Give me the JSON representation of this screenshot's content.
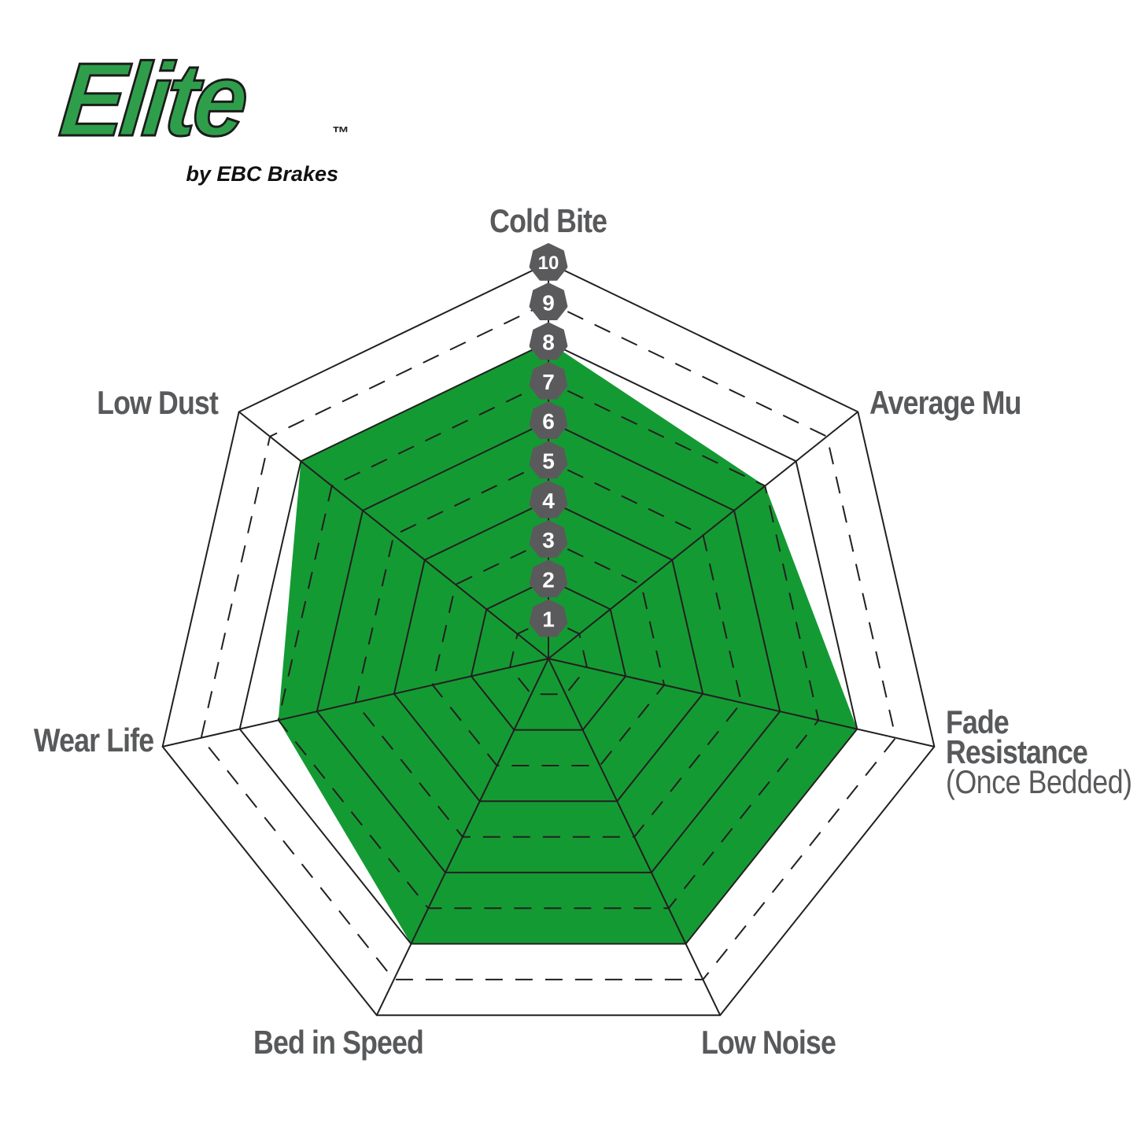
{
  "logo": {
    "brand": "Elite",
    "trademark": "™",
    "tagline": "by EBC Brakes",
    "brand_color": "#2F9E4B",
    "tagline_color": "#111111"
  },
  "axis_labels": {
    "cold_bite": "Cold Bite",
    "average_mu": "Average Mu",
    "fade_line1": "Fade",
    "fade_line2": "Resistance",
    "fade_line3": "(Once Bedded)",
    "low_noise": "Low Noise",
    "bed_in_speed": "Bed in Speed",
    "wear_life": "Wear Life",
    "low_dust": "Low Dust"
  },
  "chart_data": {
    "type": "radar",
    "axes_count": 7,
    "categories": [
      "Cold Bite",
      "Average Mu",
      "Fade Resistance (Once Bedded)",
      "Low Noise",
      "Bed in Speed",
      "Wear Life",
      "Low Dust"
    ],
    "series": [
      {
        "values": [
          8,
          7,
          8,
          8,
          8,
          7,
          8
        ],
        "fill": "#149A33"
      }
    ],
    "scale": {
      "min": 0,
      "max": 10,
      "ticks": [
        "1",
        "2",
        "3",
        "4",
        "5",
        "6",
        "7",
        "8",
        "9",
        "10"
      ]
    },
    "grid": {
      "rings": 10,
      "solid_rings": [
        2,
        4,
        6,
        8,
        10
      ],
      "dashed_rings": [
        1,
        3,
        5,
        7,
        9
      ],
      "line_color": "#231F20"
    },
    "tick_badges": {
      "fill": "#5A5A5C",
      "text_color": "#FFFFFF",
      "axis": "Cold Bite"
    },
    "legend": "none",
    "background": "#FFFFFF"
  },
  "colors": {
    "green_fill": "#149A33",
    "logo_green": "#2F9E4B",
    "label_gray": "#58595B",
    "badge_gray": "#5A5A5C",
    "line_color": "#231F20",
    "background": "#FFFFFF"
  }
}
